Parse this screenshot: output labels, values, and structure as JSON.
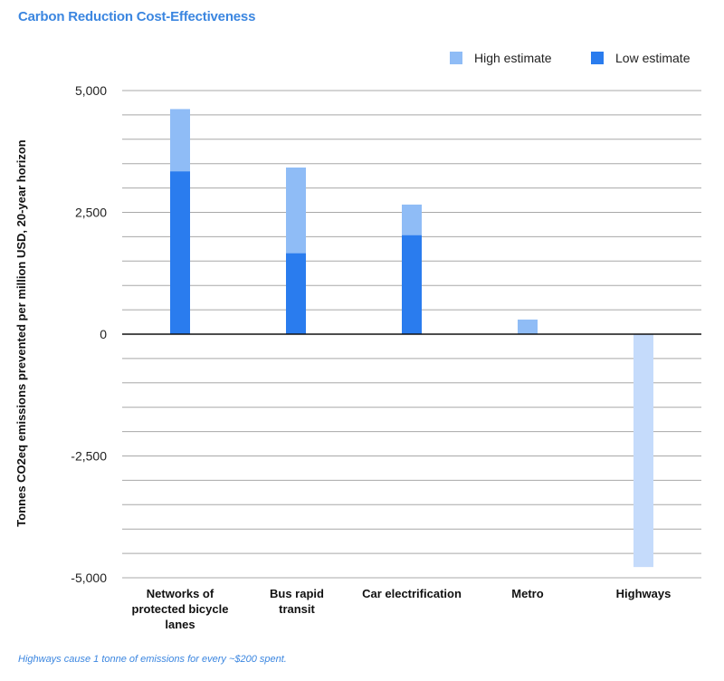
{
  "chart_data": {
    "type": "bar",
    "title": "Carbon Reduction Cost-Effectiveness",
    "ylabel": "Tonnes CO2eq emissions prevented per million USD, 20-year horizon",
    "xlabel": "",
    "categories": [
      "Networks of protected bicycle lanes",
      "Bus rapid transit",
      "Car electrification",
      "Metro",
      "Highways"
    ],
    "category_lines": [
      [
        "Networks of",
        "protected bicycle",
        "lanes"
      ],
      [
        "Bus rapid",
        "transit"
      ],
      [
        "Car electrification"
      ],
      [
        "Metro"
      ],
      [
        "Highways"
      ]
    ],
    "series": [
      {
        "name": "High estimate",
        "values": [
          4620,
          3420,
          2660,
          300,
          -4780
        ],
        "color": "#8fbcf6"
      },
      {
        "name": "Low estimate",
        "values": [
          3340,
          1660,
          2030,
          null,
          null
        ],
        "color": "#2a7cee"
      }
    ],
    "negative_color": "#c5dbfb",
    "ylim": [
      -5000,
      5000
    ],
    "yticks": [
      5000,
      2500,
      0,
      -2500,
      -5000
    ],
    "ytick_labels": [
      "5,000",
      "2,500",
      "0",
      "-2,500",
      "-5,000"
    ],
    "grid": true,
    "legend": "top-right",
    "footnote": "Highways cause 1 tonne of emissions for every ~$200 spent."
  }
}
